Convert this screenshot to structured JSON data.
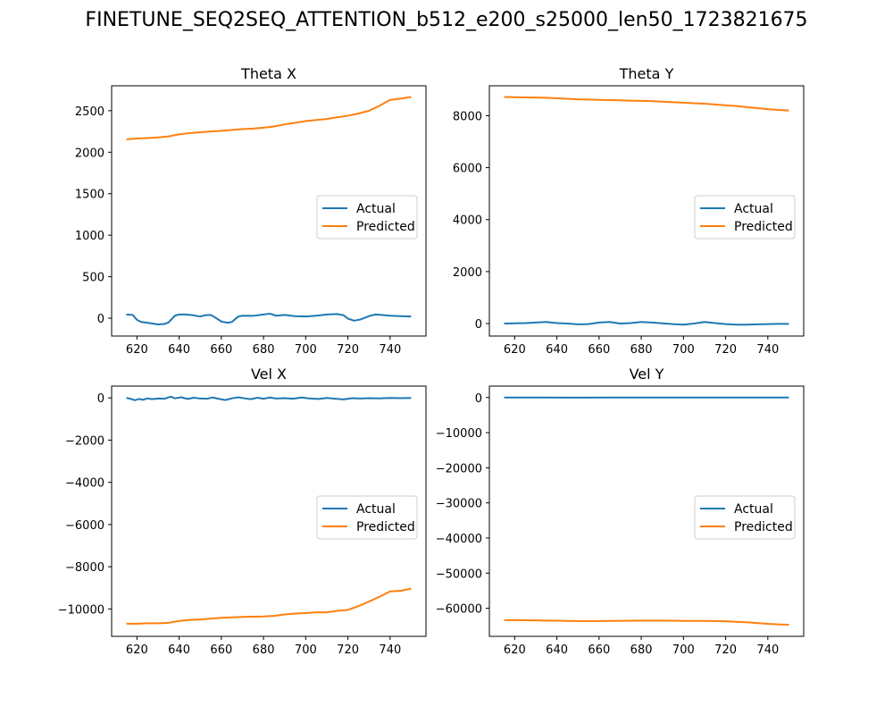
{
  "figure": {
    "title": "FINETUNE_SEQ2SEQ_ATTENTION_b512_e200_s25000_len50_1723821675",
    "colors": {
      "actual": "#1f77b4",
      "predicted": "#ff7f0e",
      "axes": "#000000",
      "legend_border": "#cccccc"
    }
  },
  "chart_data": [
    {
      "type": "line",
      "title": "Theta X",
      "xlabel": "",
      "ylabel": "",
      "xlim": [
        608,
        757
      ],
      "ylim": [
        -215,
        2800
      ],
      "xticks": [
        620,
        640,
        660,
        680,
        700,
        720,
        740
      ],
      "yticks": [
        0,
        500,
        1000,
        1500,
        2000,
        2500
      ],
      "ytick_labels": [
        "0",
        "500",
        "1000",
        "1500",
        "2000",
        "2500"
      ],
      "grid": false,
      "legend": "center-right",
      "series": [
        {
          "name": "Actual",
          "color": "#1f77b4",
          "x": [
            615,
            618,
            620,
            622,
            625,
            630,
            633,
            635,
            638,
            640,
            643,
            646,
            650,
            652,
            655,
            657,
            660,
            663,
            665,
            668,
            670,
            675,
            680,
            683,
            686,
            690,
            695,
            700,
            705,
            710,
            715,
            718,
            720,
            723,
            726,
            730,
            733,
            736,
            740,
            745,
            750
          ],
          "y": [
            45,
            40,
            -20,
            -45,
            -55,
            -75,
            -70,
            -50,
            30,
            45,
            45,
            38,
            20,
            35,
            40,
            10,
            -40,
            -55,
            -45,
            20,
            30,
            28,
            45,
            55,
            30,
            40,
            25,
            20,
            30,
            45,
            50,
            35,
            -5,
            -30,
            -15,
            25,
            45,
            40,
            30,
            25,
            20
          ]
        },
        {
          "name": "Predicted",
          "color": "#ff7f0e",
          "x": [
            615,
            620,
            625,
            630,
            635,
            640,
            645,
            650,
            655,
            660,
            665,
            670,
            675,
            680,
            685,
            690,
            695,
            700,
            705,
            710,
            715,
            720,
            725,
            730,
            735,
            740,
            745,
            750
          ],
          "y": [
            2155,
            2165,
            2170,
            2178,
            2190,
            2215,
            2230,
            2240,
            2250,
            2258,
            2268,
            2278,
            2285,
            2295,
            2310,
            2335,
            2355,
            2375,
            2388,
            2400,
            2420,
            2440,
            2465,
            2500,
            2560,
            2630,
            2645,
            2665
          ]
        }
      ]
    },
    {
      "type": "line",
      "title": "Theta Y",
      "xlabel": "",
      "ylabel": "",
      "xlim": [
        608,
        757
      ],
      "ylim": [
        -480,
        9150
      ],
      "xticks": [
        620,
        640,
        660,
        680,
        700,
        720,
        740
      ],
      "yticks": [
        0,
        2000,
        4000,
        6000,
        8000
      ],
      "ytick_labels": [
        "0",
        "2000",
        "4000",
        "6000",
        "8000"
      ],
      "grid": false,
      "legend": "center-right",
      "series": [
        {
          "name": "Actual",
          "color": "#1f77b4",
          "x": [
            615,
            620,
            625,
            630,
            635,
            640,
            645,
            650,
            655,
            660,
            665,
            670,
            675,
            680,
            685,
            690,
            695,
            700,
            705,
            710,
            715,
            720,
            725,
            730,
            735,
            740,
            745,
            750
          ],
          "y": [
            0,
            10,
            20,
            40,
            60,
            20,
            0,
            -30,
            -20,
            40,
            60,
            0,
            20,
            60,
            40,
            10,
            -20,
            -40,
            0,
            60,
            20,
            -20,
            -40,
            -40,
            -30,
            -20,
            -10,
            -10
          ]
        },
        {
          "name": "Predicted",
          "color": "#ff7f0e",
          "x": [
            615,
            620,
            625,
            630,
            635,
            640,
            645,
            650,
            655,
            660,
            665,
            670,
            675,
            680,
            685,
            690,
            695,
            700,
            705,
            710,
            715,
            720,
            725,
            730,
            735,
            740,
            745,
            750
          ],
          "y": [
            8720,
            8710,
            8705,
            8700,
            8690,
            8670,
            8650,
            8630,
            8620,
            8610,
            8600,
            8590,
            8580,
            8570,
            8560,
            8540,
            8520,
            8500,
            8480,
            8460,
            8430,
            8400,
            8370,
            8330,
            8290,
            8250,
            8220,
            8200
          ]
        }
      ]
    },
    {
      "type": "line",
      "title": "Vel X",
      "xlabel": "",
      "ylabel": "",
      "xlim": [
        608,
        757
      ],
      "ylim": [
        -11300,
        560
      ],
      "xticks": [
        620,
        640,
        660,
        680,
        700,
        720,
        740
      ],
      "yticks": [
        0,
        -2000,
        -4000,
        -6000,
        -8000,
        -10000
      ],
      "ytick_labels": [
        "0",
        "−2000",
        "−4000",
        "−6000",
        "−8000",
        "−10000"
      ],
      "grid": false,
      "legend": "center-right",
      "series": [
        {
          "name": "Actual",
          "color": "#1f77b4",
          "x": [
            615,
            617,
            619,
            621,
            623,
            625,
            627,
            630,
            633,
            636,
            638,
            641,
            644,
            647,
            650,
            653,
            656,
            659,
            662,
            665,
            668,
            671,
            674,
            677,
            680,
            683,
            686,
            690,
            694,
            698,
            702,
            706,
            710,
            714,
            718,
            722,
            726,
            730,
            735,
            740,
            745,
            750
          ],
          "y": [
            0,
            -40,
            -110,
            -50,
            -90,
            -20,
            -60,
            -30,
            -40,
            60,
            -20,
            30,
            -50,
            10,
            -30,
            -40,
            20,
            -50,
            -100,
            -20,
            30,
            -20,
            -60,
            10,
            -40,
            20,
            -30,
            -10,
            -40,
            20,
            -30,
            -50,
            0,
            -40,
            -70,
            -10,
            -30,
            -10,
            -20,
            0,
            -10,
            0
          ]
        },
        {
          "name": "Predicted",
          "color": "#ff7f0e",
          "x": [
            615,
            620,
            625,
            630,
            635,
            640,
            645,
            650,
            655,
            660,
            665,
            670,
            675,
            680,
            685,
            690,
            695,
            700,
            705,
            710,
            715,
            720,
            725,
            730,
            735,
            740,
            745,
            750
          ],
          "y": [
            -10700,
            -10700,
            -10680,
            -10680,
            -10660,
            -10570,
            -10520,
            -10500,
            -10460,
            -10420,
            -10400,
            -10380,
            -10370,
            -10360,
            -10330,
            -10260,
            -10220,
            -10200,
            -10160,
            -10160,
            -10090,
            -10050,
            -9870,
            -9650,
            -9420,
            -9170,
            -9140,
            -9040
          ]
        }
      ]
    },
    {
      "type": "line",
      "title": "Vel Y",
      "xlabel": "",
      "ylabel": "",
      "xlim": [
        608,
        757
      ],
      "ylim": [
        -68000,
        3250
      ],
      "xticks": [
        620,
        640,
        660,
        680,
        700,
        720,
        740
      ],
      "yticks": [
        0,
        -10000,
        -20000,
        -30000,
        -40000,
        -50000,
        -60000
      ],
      "ytick_labels": [
        "0",
        "−10000",
        "−20000",
        "−30000",
        "−40000",
        "−50000",
        "−60000"
      ],
      "grid": false,
      "legend": "center-right",
      "series": [
        {
          "name": "Actual",
          "color": "#1f77b4",
          "x": [
            615,
            630,
            650,
            670,
            690,
            710,
            730,
            750
          ],
          "y": [
            0,
            0,
            -20,
            10,
            0,
            -10,
            0,
            0
          ]
        },
        {
          "name": "Predicted",
          "color": "#ff7f0e",
          "x": [
            615,
            620,
            625,
            630,
            635,
            640,
            645,
            650,
            655,
            660,
            665,
            670,
            675,
            680,
            685,
            690,
            695,
            700,
            705,
            710,
            715,
            720,
            725,
            730,
            735,
            740,
            745,
            750
          ],
          "y": [
            -63400,
            -63400,
            -63420,
            -63450,
            -63500,
            -63550,
            -63600,
            -63650,
            -63650,
            -63640,
            -63600,
            -63580,
            -63560,
            -63520,
            -63500,
            -63520,
            -63560,
            -63600,
            -63600,
            -63620,
            -63640,
            -63720,
            -63850,
            -64000,
            -64200,
            -64450,
            -64600,
            -64700
          ]
        }
      ]
    }
  ]
}
